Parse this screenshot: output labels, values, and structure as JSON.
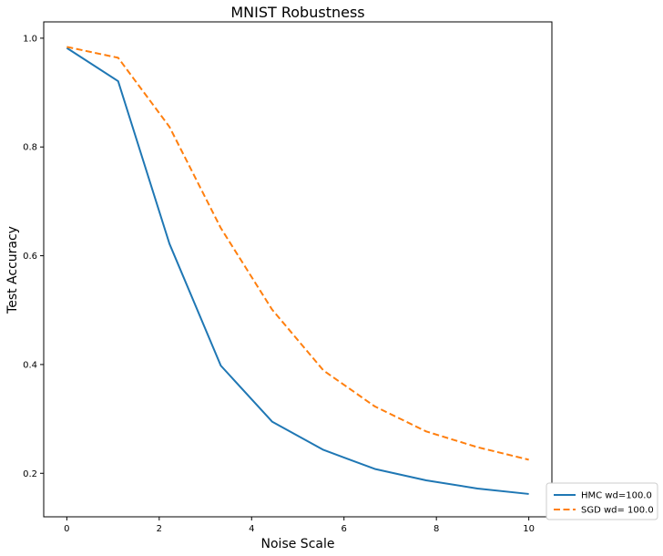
{
  "chart_data": {
    "type": "line",
    "title": "MNIST Robustness",
    "xlabel": "Noise Scale",
    "ylabel": "Test Accuracy",
    "xlim": [
      -0.5,
      10.5
    ],
    "ylim": [
      0.12,
      1.03
    ],
    "xticks": [
      0,
      2,
      4,
      6,
      8,
      10
    ],
    "yticks": [
      0.2,
      0.4,
      0.6,
      0.8,
      1.0
    ],
    "xtick_labels": [
      "0",
      "2",
      "4",
      "6",
      "8",
      "10"
    ],
    "ytick_labels": [
      "0.2",
      "0.4",
      "0.6",
      "0.8",
      "1.0"
    ],
    "grid": false,
    "legend_position": "bottom-right (outside)",
    "x": [
      0,
      1.111,
      2.222,
      3.333,
      4.444,
      5.556,
      6.667,
      7.778,
      8.889,
      10
    ],
    "series": [
      {
        "name": "HMC wd=100.0",
        "color": "#1f77b4",
        "style": "solid",
        "values": [
          0.982,
          0.921,
          0.622,
          0.398,
          0.295,
          0.243,
          0.208,
          0.187,
          0.172,
          0.162
        ]
      },
      {
        "name": "SGD wd= 100.0",
        "color": "#ff7f0e",
        "style": "dashed",
        "values": [
          0.984,
          0.964,
          0.837,
          0.651,
          0.501,
          0.389,
          0.323,
          0.277,
          0.248,
          0.225
        ]
      }
    ]
  }
}
